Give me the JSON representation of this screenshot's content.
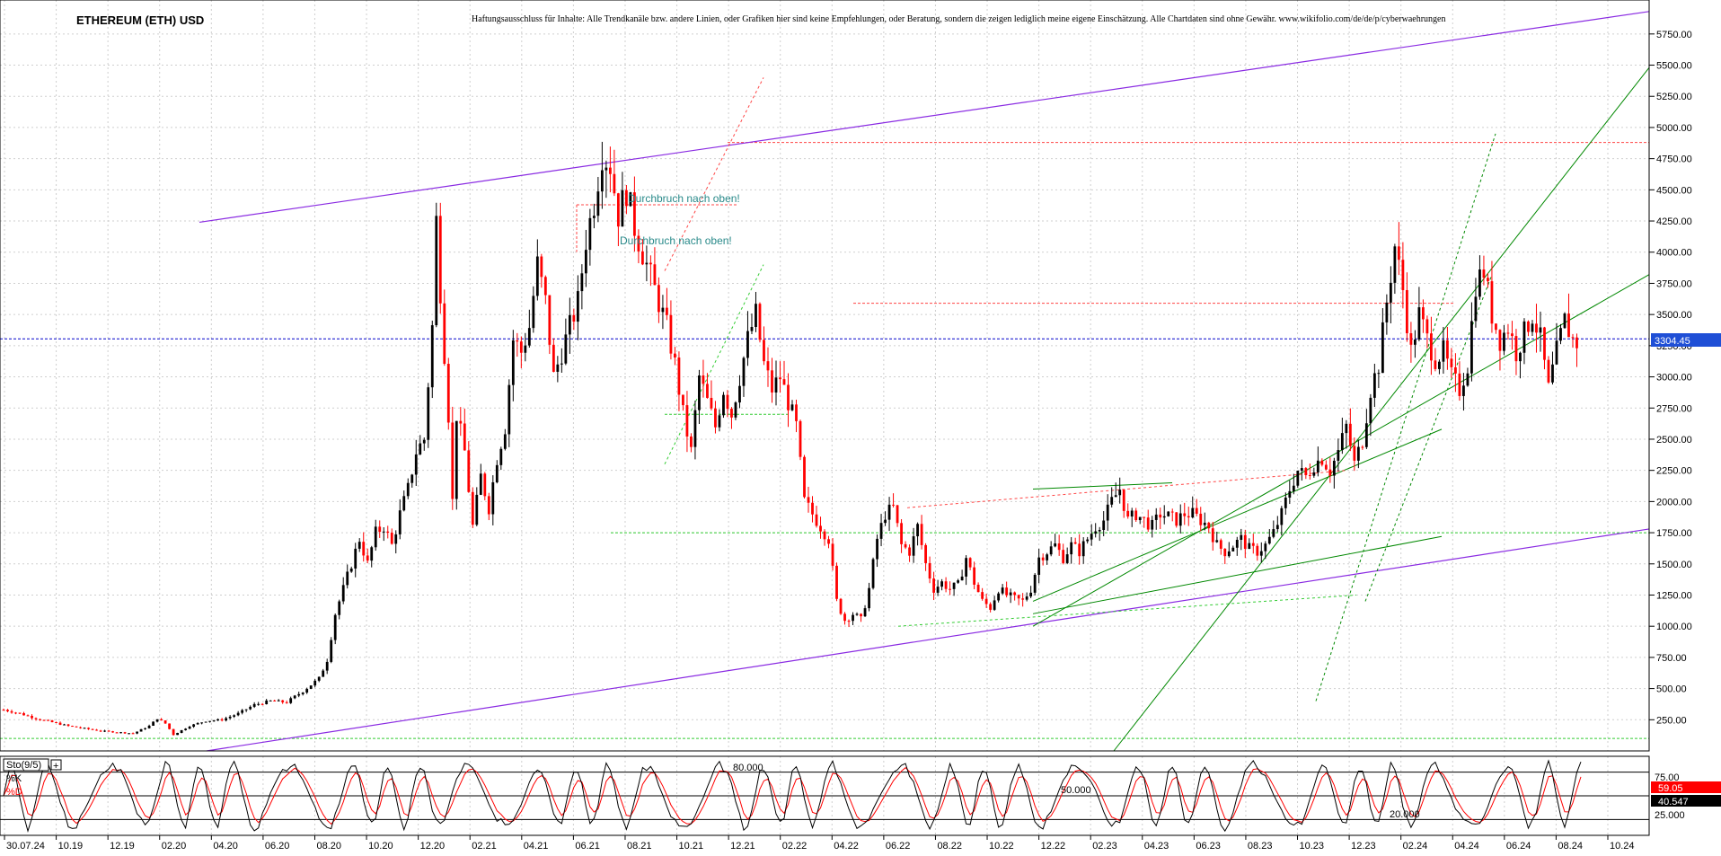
{
  "header": {
    "title": "ETHEREUM (ETH) USD",
    "disclaimer": "Haftungsausschluss für Inhalte: Alle Trendkanäle bzw. andere Linien, oder Grafiken hier sind keine Empfehlungen, oder Beratung, sondern die zeigen lediglich meine eigene Einschätzung. Alle Chartdaten sind ohne Gewähr.  www.wikifolio.com/de/de/p/cyberwaehrungen"
  },
  "colors": {
    "up_candle": "#000000",
    "down_candle": "#ff0000",
    "channel_purple": "#8a2be2",
    "trend_green": "#008800",
    "light_green": "#33cc33",
    "dotted_red": "#ff4444",
    "price_line_blue": "#0000cc",
    "price_tag_bg": "#1f4fd6",
    "stoch_k": "#000000",
    "stoch_d": "#ff0000",
    "annotation": "#2a8a8a",
    "grid": "#cfcfcf"
  },
  "annotations": [
    {
      "id": "breakout-1",
      "text": "Durchbruch nach oben!"
    },
    {
      "id": "breakout-2",
      "text": "Durchbruch nach oben!"
    }
  ],
  "indicator": {
    "name": "Sto(9/5)",
    "k_label": "%K",
    "d_label": "%D",
    "level_80": "80.000",
    "level_50": "50.000",
    "level_20": "20.000",
    "axis_ticks": [
      "75.00",
      "25.000"
    ],
    "d_value_tag": "59.05",
    "k_value_tag": "40.547"
  },
  "price_tag": "3304.45",
  "chart_data": {
    "type": "candlestick",
    "title": "ETHEREUM (ETH) USD",
    "y_axis": {
      "ticks": [
        "250.00",
        "500.00",
        "750.00",
        "1000.00",
        "1250.00",
        "1500.00",
        "1750.00",
        "2000.00",
        "2250.00",
        "2500.00",
        "2750.00",
        "3000.00",
        "3250.00",
        "3500.00",
        "3750.00",
        "4000.00",
        "4250.00",
        "4500.00",
        "4750.00",
        "5000.00",
        "5250.00",
        "5500.00",
        "5750.00"
      ],
      "ylim": [
        0,
        5900
      ]
    },
    "x_axis": {
      "ticks": [
        "30.07.24",
        "10.19",
        "12.19",
        "02.20",
        "04.20",
        "06.20",
        "08.20",
        "10.20",
        "12.20",
        "02.21",
        "04.21",
        "06.21",
        "08.21",
        "10.21",
        "12.21",
        "02.22",
        "04.22",
        "06.22",
        "08.22",
        "10.22",
        "12.22",
        "02.23",
        "04.23",
        "06.23",
        "08.23",
        "10.23",
        "12.23",
        "02.24",
        "04.24",
        "06.24",
        "08.24",
        "10.24"
      ]
    },
    "current_price": 3304.45,
    "price_path": [
      [
        0,
        330
      ],
      [
        4,
        300
      ],
      [
        8,
        260
      ],
      [
        12,
        230
      ],
      [
        16,
        200
      ],
      [
        20,
        180
      ],
      [
        24,
        160
      ],
      [
        28,
        150
      ],
      [
        32,
        140
      ],
      [
        36,
        200
      ],
      [
        38,
        260
      ],
      [
        40,
        220
      ],
      [
        42,
        130
      ],
      [
        46,
        200
      ],
      [
        50,
        240
      ],
      [
        54,
        250
      ],
      [
        58,
        300
      ],
      [
        62,
        370
      ],
      [
        66,
        400
      ],
      [
        70,
        390
      ],
      [
        74,
        480
      ],
      [
        78,
        580
      ],
      [
        80,
        730
      ],
      [
        82,
        1100
      ],
      [
        84,
        1300
      ],
      [
        86,
        1500
      ],
      [
        88,
        1700
      ],
      [
        90,
        1500
      ],
      [
        92,
        1750
      ],
      [
        94,
        1800
      ],
      [
        96,
        1650
      ],
      [
        98,
        1900
      ],
      [
        100,
        2100
      ],
      [
        102,
        2400
      ],
      [
        104,
        2500
      ],
      [
        106,
        3400
      ],
      [
        107,
        4250
      ],
      [
        108,
        3700
      ],
      [
        110,
        2700
      ],
      [
        111,
        2000
      ],
      [
        112,
        2700
      ],
      [
        114,
        2400
      ],
      [
        116,
        1800
      ],
      [
        118,
        2200
      ],
      [
        120,
        1950
      ],
      [
        122,
        2350
      ],
      [
        124,
        2600
      ],
      [
        126,
        3300
      ],
      [
        128,
        3200
      ],
      [
        130,
        3400
      ],
      [
        132,
        3900
      ],
      [
        134,
        3600
      ],
      [
        136,
        3000
      ],
      [
        138,
        3200
      ],
      [
        140,
        3400
      ],
      [
        142,
        3600
      ],
      [
        144,
        4100
      ],
      [
        146,
        4400
      ],
      [
        148,
        4800
      ],
      [
        150,
        4700
      ],
      [
        152,
        4300
      ],
      [
        154,
        4500
      ],
      [
        156,
        4200
      ],
      [
        158,
        4000
      ],
      [
        160,
        3800
      ],
      [
        162,
        3600
      ],
      [
        164,
        3400
      ],
      [
        166,
        3100
      ],
      [
        168,
        2700
      ],
      [
        170,
        2400
      ],
      [
        172,
        3000
      ],
      [
        174,
        2800
      ],
      [
        176,
        2600
      ],
      [
        178,
        2900
      ],
      [
        180,
        2700
      ],
      [
        182,
        3000
      ],
      [
        184,
        3300
      ],
      [
        186,
        3500
      ],
      [
        188,
        3100
      ],
      [
        190,
        2900
      ],
      [
        192,
        3000
      ],
      [
        194,
        2800
      ],
      [
        196,
        2600
      ],
      [
        198,
        2000
      ],
      [
        200,
        1900
      ],
      [
        202,
        1800
      ],
      [
        204,
        1700
      ],
      [
        206,
        1200
      ],
      [
        208,
        1050
      ],
      [
        210,
        1100
      ],
      [
        212,
        1050
      ],
      [
        214,
        1300
      ],
      [
        216,
        1700
      ],
      [
        218,
        1900
      ],
      [
        220,
        1950
      ],
      [
        222,
        1650
      ],
      [
        224,
        1600
      ],
      [
        226,
        1800
      ],
      [
        228,
        1500
      ],
      [
        230,
        1300
      ],
      [
        232,
        1350
      ],
      [
        234,
        1300
      ],
      [
        236,
        1330
      ],
      [
        238,
        1550
      ],
      [
        240,
        1350
      ],
      [
        242,
        1200
      ],
      [
        244,
        1150
      ],
      [
        246,
        1300
      ],
      [
        248,
        1250
      ],
      [
        250,
        1220
      ],
      [
        252,
        1200
      ],
      [
        254,
        1300
      ],
      [
        256,
        1550
      ],
      [
        258,
        1600
      ],
      [
        260,
        1650
      ],
      [
        262,
        1550
      ],
      [
        264,
        1650
      ],
      [
        266,
        1600
      ],
      [
        268,
        1700
      ],
      [
        270,
        1800
      ],
      [
        272,
        1850
      ],
      [
        274,
        2000
      ],
      [
        276,
        2100
      ],
      [
        278,
        1850
      ],
      [
        280,
        1900
      ],
      [
        282,
        1850
      ],
      [
        284,
        1800
      ],
      [
        286,
        1900
      ],
      [
        288,
        1880
      ],
      [
        290,
        1850
      ],
      [
        292,
        1900
      ],
      [
        294,
        1900
      ],
      [
        296,
        1850
      ],
      [
        298,
        1800
      ],
      [
        300,
        1650
      ],
      [
        302,
        1600
      ],
      [
        304,
        1650
      ],
      [
        306,
        1700
      ],
      [
        308,
        1620
      ],
      [
        310,
        1600
      ],
      [
        312,
        1650
      ],
      [
        314,
        1750
      ],
      [
        316,
        1900
      ],
      [
        318,
        2100
      ],
      [
        320,
        2250
      ],
      [
        322,
        2200
      ],
      [
        324,
        2300
      ],
      [
        326,
        2350
      ],
      [
        328,
        2250
      ],
      [
        330,
        2400
      ],
      [
        332,
        2600
      ],
      [
        334,
        2300
      ],
      [
        336,
        2500
      ],
      [
        338,
        2900
      ],
      [
        340,
        3100
      ],
      [
        342,
        3600
      ],
      [
        344,
        4050
      ],
      [
        346,
        3700
      ],
      [
        348,
        3200
      ],
      [
        350,
        3500
      ],
      [
        352,
        3300
      ],
      [
        354,
        3150
      ],
      [
        356,
        3200
      ],
      [
        358,
        3000
      ],
      [
        360,
        2900
      ],
      [
        362,
        3100
      ],
      [
        364,
        3750
      ],
      [
        366,
        3850
      ],
      [
        368,
        3500
      ],
      [
        370,
        3300
      ],
      [
        372,
        3400
      ],
      [
        374,
        3200
      ],
      [
        376,
        3350
      ],
      [
        378,
        3500
      ],
      [
        380,
        3300
      ],
      [
        382,
        2900
      ],
      [
        384,
        3200
      ],
      [
        386,
        3450
      ],
      [
        388,
        3300
      ],
      [
        390,
        3250
      ]
    ],
    "indicator": {
      "name": "Sto(9/5)",
      "type": "stochastic",
      "levels": [
        80,
        50,
        20
      ],
      "ylim": [
        0,
        100
      ],
      "k_last": 40.547,
      "d_last": 59.05
    }
  }
}
